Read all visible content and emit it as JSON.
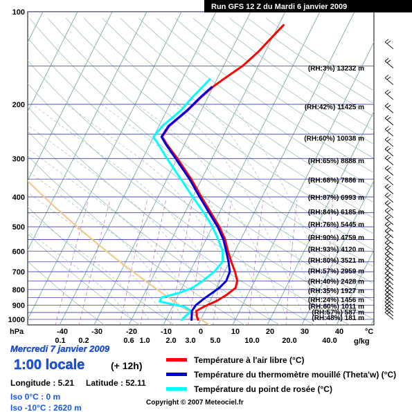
{
  "chart_data": {
    "type": "line",
    "title": "Run GFS 12 Z du Mardi 6 janvier 2009",
    "y_axis_unit": "hPa",
    "x_axis_unit": "°C",
    "mixing_ratio_unit": "g/kg",
    "pressure_ticks": [
      "100",
      "200",
      "300",
      "400",
      "500",
      "600",
      "700",
      "800",
      "900",
      "1000"
    ],
    "temperature_ticks": [
      "-40",
      "-30",
      "-20",
      "-10",
      "0",
      "10",
      "20",
      "30",
      "40"
    ],
    "mixing_ratio_ticks": [
      "0.1",
      "0.2",
      "0.6",
      "1.0",
      "2.0",
      "3.0",
      "5.0",
      "10.0",
      "20.0",
      "40.0"
    ],
    "levels": [
      {
        "p": 152,
        "rh": "(RH:3%)",
        "alt": "13232 m"
      },
      {
        "p": 203,
        "rh": "(RH:42%)",
        "alt": "11425 m"
      },
      {
        "p": 257,
        "rh": "(RH:60%)",
        "alt": "10038 m"
      },
      {
        "p": 304,
        "rh": "(RH:65%)",
        "alt": "8888 m"
      },
      {
        "p": 352,
        "rh": "(RH:68%)",
        "alt": "7886 m"
      },
      {
        "p": 400,
        "rh": "(RH:87%)",
        "alt": "6993 m"
      },
      {
        "p": 446,
        "rh": "(RH:84%)",
        "alt": "6185 m"
      },
      {
        "p": 490,
        "rh": "(RH:76%)",
        "alt": "5445 m"
      },
      {
        "p": 540,
        "rh": "(RH:90%)",
        "alt": "4759 m"
      },
      {
        "p": 590,
        "rh": "(RH:93%)",
        "alt": "4120 m"
      },
      {
        "p": 640,
        "rh": "(RH:80%)",
        "alt": "3521 m"
      },
      {
        "p": 695,
        "rh": "(RH:57%)",
        "alt": "2959 m"
      },
      {
        "p": 750,
        "rh": "(RH:40%)",
        "alt": "2428 m"
      },
      {
        "p": 805,
        "rh": "(RH:35%)",
        "alt": "1927 m"
      },
      {
        "p": 860,
        "rh": "(RH:24%)",
        "alt": "1456 m"
      },
      {
        "p": 905,
        "rh": "(RH:60%)",
        "alt": "1011 m"
      },
      {
        "p": 945,
        "rh": "(RH:57%)",
        "alt": "587 m"
      },
      {
        "p": 985,
        "rh": "(RH:48%)",
        "alt": "181 m"
      }
    ],
    "series": [
      {
        "name": "Température à l'air libre (°C)",
        "color": "#ff0000",
        "points": [
          [
            1010,
            -0.5
          ],
          [
            980,
            -1.5
          ],
          [
            940,
            -2.5
          ],
          [
            910,
            -1.0
          ],
          [
            870,
            2.0
          ],
          [
            830,
            4.0
          ],
          [
            790,
            5.5
          ],
          [
            750,
            5.0
          ],
          [
            700,
            3.0
          ],
          [
            650,
            0.5
          ],
          [
            600,
            -2.0
          ],
          [
            550,
            -4.5
          ],
          [
            500,
            -8.0
          ],
          [
            450,
            -12.5
          ],
          [
            400,
            -17.5
          ],
          [
            350,
            -23.0
          ],
          [
            300,
            -30.0
          ],
          [
            270,
            -35.0
          ],
          [
            255,
            -37.5
          ],
          [
            235,
            -37.0
          ],
          [
            210,
            -34.0
          ],
          [
            190,
            -32.0
          ],
          [
            175,
            -30.0
          ],
          [
            165,
            -28.0
          ],
          [
            150,
            -24.5
          ],
          [
            135,
            -22.0
          ],
          [
            120,
            -20.0
          ],
          [
            110,
            -18.5
          ]
        ]
      },
      {
        "name": "Température du thermomètre mouillé (Theta'w) (°C)",
        "color": "#0000dd",
        "points": [
          [
            1010,
            -2.5
          ],
          [
            980,
            -3.0
          ],
          [
            940,
            -3.8
          ],
          [
            900,
            -3.5
          ],
          [
            860,
            -2.2
          ],
          [
            820,
            -0.5
          ],
          [
            790,
            0.8
          ],
          [
            750,
            1.8
          ],
          [
            700,
            1.5
          ],
          [
            650,
            -0.3
          ],
          [
            600,
            -2.5
          ],
          [
            550,
            -5.0
          ],
          [
            500,
            -8.5
          ],
          [
            450,
            -13.0
          ],
          [
            400,
            -18.0
          ],
          [
            350,
            -23.5
          ],
          [
            300,
            -30.5
          ],
          [
            270,
            -35.3
          ],
          [
            255,
            -37.7
          ],
          [
            235,
            -37.2
          ],
          [
            210,
            -34.2
          ],
          [
            190,
            -32.2
          ],
          [
            175,
            -30.3
          ]
        ]
      },
      {
        "name": "Température du point de rosée (°C)",
        "color": "#00ffff",
        "points": [
          [
            1010,
            -5.5
          ],
          [
            980,
            -5.0
          ],
          [
            940,
            -4.0
          ],
          [
            910,
            -6.5
          ],
          [
            875,
            -14.5
          ],
          [
            850,
            -14.5
          ],
          [
            820,
            -10.0
          ],
          [
            790,
            -7.0
          ],
          [
            750,
            -5.0
          ],
          [
            700,
            -3.0
          ],
          [
            650,
            -2.0
          ],
          [
            600,
            -3.5
          ],
          [
            550,
            -6.5
          ],
          [
            500,
            -10.0
          ],
          [
            450,
            -14.5
          ],
          [
            400,
            -20.0
          ],
          [
            350,
            -26.0
          ],
          [
            300,
            -33.0
          ],
          [
            270,
            -37.5
          ],
          [
            255,
            -40.0
          ],
          [
            235,
            -39.0
          ],
          [
            210,
            -36.0
          ],
          [
            190,
            -34.5
          ],
          [
            175,
            -33.0
          ],
          [
            165,
            -32.0
          ]
        ]
      }
    ],
    "grid": true,
    "legend_placement": "bottom"
  },
  "footer": {
    "date": "Mercredi 7 janvier 2009",
    "time": "1:00 locale",
    "offset": "(+ 12h)",
    "longitude": "Longitude : 5.21",
    "latitude": "Latitude : 52.11",
    "iso0": "Iso 0°C : 0 m",
    "iso10": "Iso -10°C : 2620 m",
    "copyright": "Copyright © 2007 Meteociel.fr"
  },
  "colors": {
    "temp": "#ff0000",
    "wet": "#0000dd",
    "dew": "#00ffff",
    "adiabat": "#f5c98a",
    "isotherm": "#7aa7a7",
    "isobar": "#3a3ab0"
  }
}
